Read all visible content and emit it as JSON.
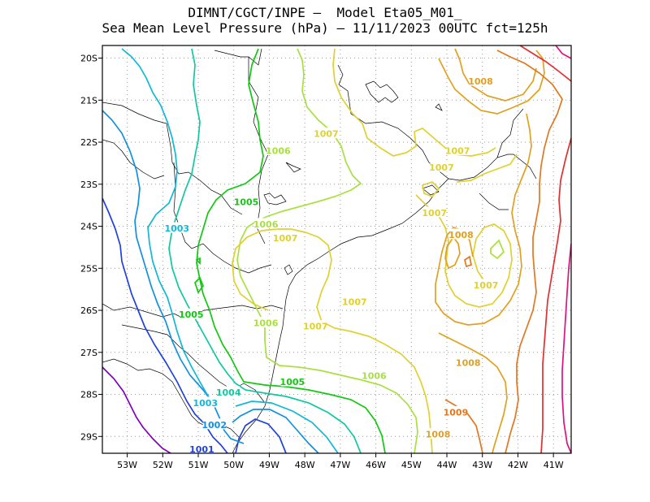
{
  "header": {
    "line1": "DIMNT/CGCT/INPE –  Model Eta05_M01_",
    "line2": "Sea Mean Level Pressure (hPa) – 11/11/2023 00UTC fct=125h"
  },
  "map": {
    "lon_range": [
      -53.7,
      -40.5
    ],
    "lat_range": [
      -29.4,
      -19.7
    ],
    "x_ticks": [
      {
        "value": -53,
        "label": "53W"
      },
      {
        "value": -52,
        "label": "52W"
      },
      {
        "value": -51,
        "label": "51W"
      },
      {
        "value": -50,
        "label": "50W"
      },
      {
        "value": -49,
        "label": "49W"
      },
      {
        "value": -48,
        "label": "48W"
      },
      {
        "value": -47,
        "label": "47W"
      },
      {
        "value": -46,
        "label": "46W"
      },
      {
        "value": -45,
        "label": "45W"
      },
      {
        "value": -44,
        "label": "44W"
      },
      {
        "value": -43,
        "label": "43W"
      },
      {
        "value": -42,
        "label": "42W"
      },
      {
        "value": -41,
        "label": "41W"
      }
    ],
    "y_ticks": [
      {
        "value": -20,
        "label": "20S"
      },
      {
        "value": -21,
        "label": "21S"
      },
      {
        "value": -22,
        "label": "22S"
      },
      {
        "value": -23,
        "label": "23S"
      },
      {
        "value": -24,
        "label": "24S"
      },
      {
        "value": -25,
        "label": "25S"
      },
      {
        "value": -26,
        "label": "26S"
      },
      {
        "value": -27,
        "label": "27S"
      },
      {
        "value": -28,
        "label": "28S"
      },
      {
        "value": -29,
        "label": "29S"
      }
    ],
    "grid": "dotted",
    "colors": {
      "1000": "#8000c0",
      "1001": "#2040e0",
      "1002": "#1090e0",
      "1003": "#10b8d8",
      "1004": "#10c8a0",
      "1005": "#10c810",
      "1006": "#a8e040",
      "1007": "#e0d030",
      "1008": "#e0a020",
      "1009": "#e07820",
      "1010": "#e03030",
      "1011": "#e01080"
    },
    "contour_labels": [
      {
        "text": "1008",
        "lon": -43.05,
        "lat": -20.55,
        "level": "1008"
      },
      {
        "text": "1007",
        "lon": -47.4,
        "lat": -21.8,
        "level": "1007"
      },
      {
        "text": "1006",
        "lon": -48.75,
        "lat": -22.2,
        "level": "1006"
      },
      {
        "text": "1007",
        "lon": -43.7,
        "lat": -22.2,
        "level": "1007"
      },
      {
        "text": "1007",
        "lon": -44.15,
        "lat": -22.6,
        "level": "1007"
      },
      {
        "text": "1005",
        "lon": -49.65,
        "lat": -23.42,
        "level": "1005"
      },
      {
        "text": "1007",
        "lon": -44.35,
        "lat": -23.68,
        "level": "1007"
      },
      {
        "text": "1006",
        "lon": -49.1,
        "lat": -23.95,
        "level": "1006"
      },
      {
        "text": "1003",
        "lon": -51.6,
        "lat": -24.05,
        "level": "1003"
      },
      {
        "text": "1008",
        "lon": -43.6,
        "lat": -24.2,
        "level": "1008"
      },
      {
        "text": "1007",
        "lon": -48.55,
        "lat": -24.28,
        "level": "1007"
      },
      {
        "text": "1007",
        "lon": -42.9,
        "lat": -25.4,
        "level": "1007"
      },
      {
        "text": "1007",
        "lon": -46.6,
        "lat": -25.8,
        "level": "1007"
      },
      {
        "text": "1005",
        "lon": -51.2,
        "lat": -26.1,
        "level": "1005"
      },
      {
        "text": "1006",
        "lon": -49.1,
        "lat": -26.3,
        "level": "1006"
      },
      {
        "text": "1007",
        "lon": -47.7,
        "lat": -26.38,
        "level": "1007"
      },
      {
        "text": "1008",
        "lon": -43.4,
        "lat": -27.25,
        "level": "1008"
      },
      {
        "text": "1006",
        "lon": -46.05,
        "lat": -27.55,
        "level": "1006"
      },
      {
        "text": "1005",
        "lon": -48.35,
        "lat": -27.7,
        "level": "1005"
      },
      {
        "text": "1004",
        "lon": -50.15,
        "lat": -27.95,
        "level": "1004"
      },
      {
        "text": "1003",
        "lon": -50.8,
        "lat": -28.2,
        "level": "1003"
      },
      {
        "text": "1009",
        "lon": -43.75,
        "lat": -28.42,
        "level": "1009"
      },
      {
        "text": "1002",
        "lon": -50.55,
        "lat": -28.72,
        "level": "1002"
      },
      {
        "text": "1008",
        "lon": -44.25,
        "lat": -28.95,
        "level": "1008"
      },
      {
        "text": "1001",
        "lon": -50.9,
        "lat": -29.3,
        "level": "1001"
      }
    ]
  }
}
